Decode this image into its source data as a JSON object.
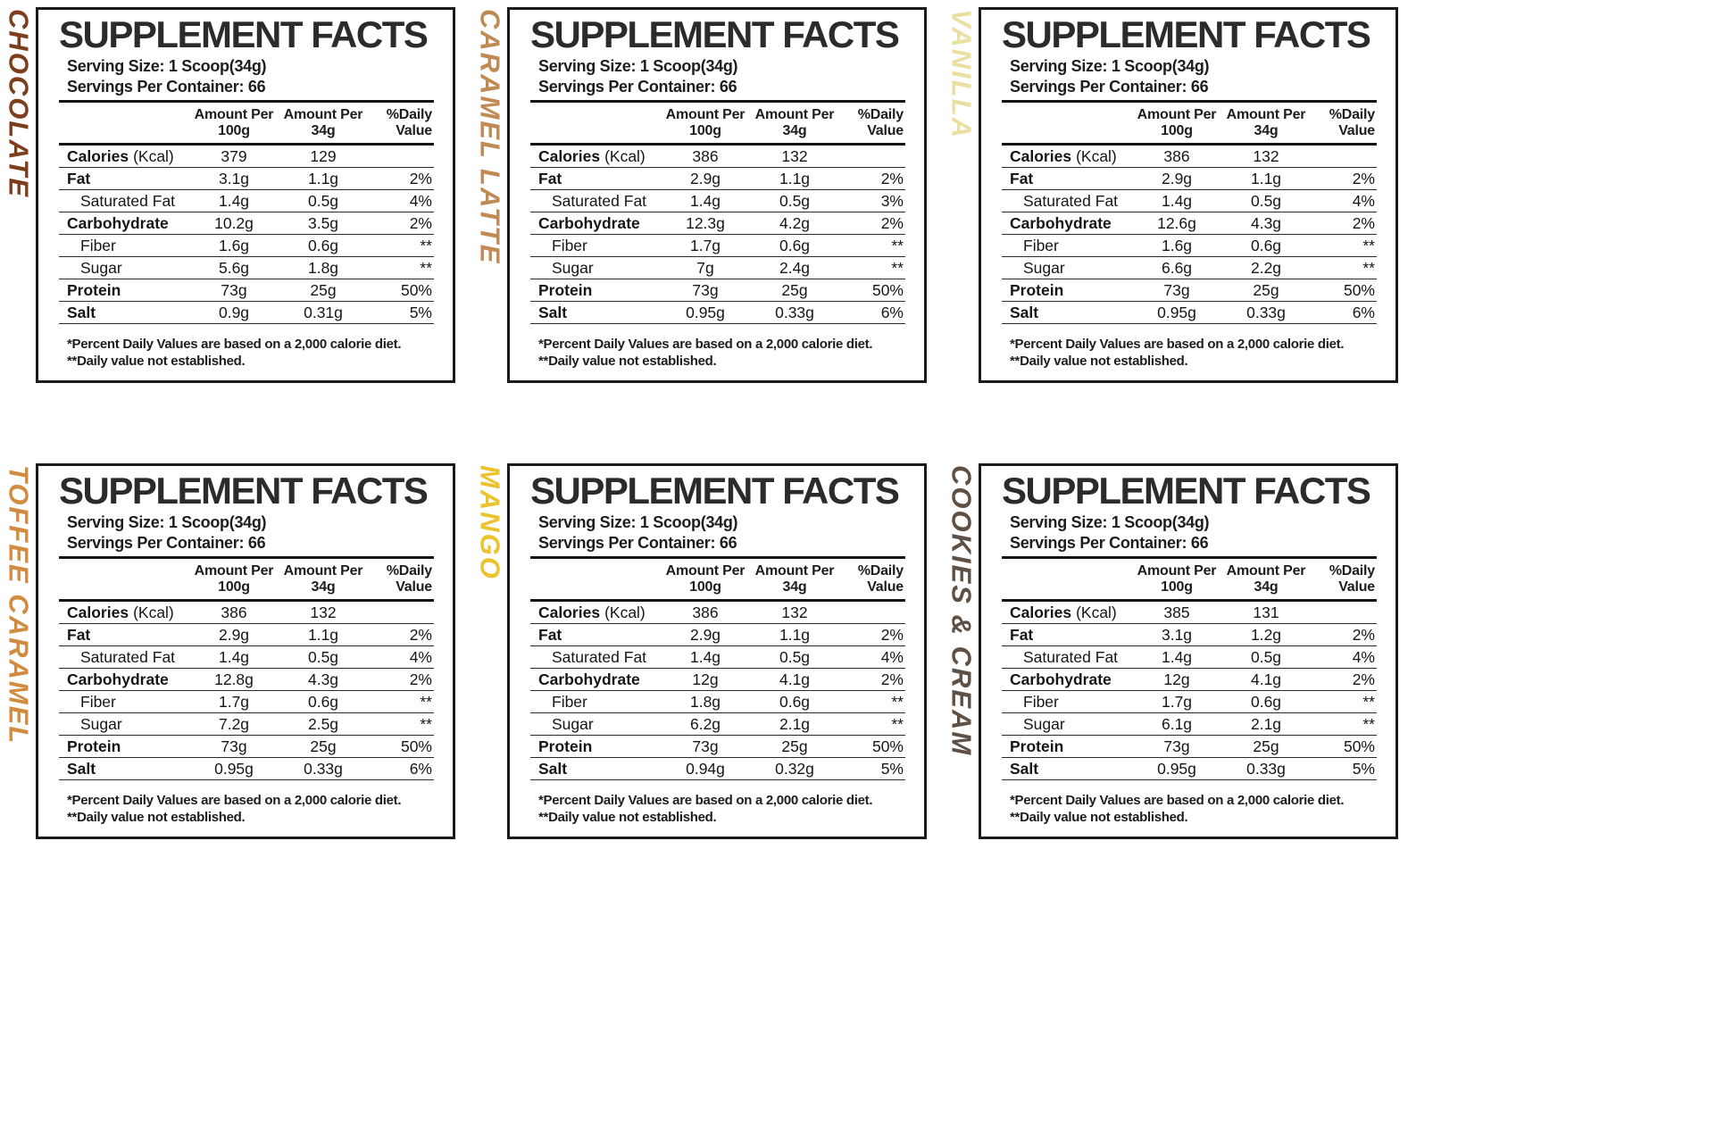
{
  "common": {
    "title": "SUPPLEMENT FACTS",
    "serving_size": "Serving Size: 1 Scoop(34g)",
    "servings_per_container": "Servings Per Container: 66",
    "columns": {
      "amount_100_line1": "Amount Per",
      "amount_100_line2": "100g",
      "amount_34_line1": "Amount Per",
      "amount_34_line2": "34g",
      "daily_value_line1": "%Daily",
      "daily_value_line2": "Value"
    },
    "rows": [
      {
        "label": "Calories",
        "suffix": "(Kcal)",
        "style": "bold"
      },
      {
        "label": "Fat",
        "style": "bold"
      },
      {
        "label": "Saturated Fat",
        "style": "indent"
      },
      {
        "label": "Carbohydrate",
        "style": "bold"
      },
      {
        "label": "Fiber",
        "style": "indent"
      },
      {
        "label": "Sugar",
        "style": "indent"
      },
      {
        "label": "Protein",
        "style": "bold"
      },
      {
        "label": "Salt",
        "style": "bold"
      }
    ],
    "footnotes": [
      "*Percent Daily Values are based on a 2,000 calorie diet.",
      "**Daily value not established."
    ]
  },
  "panels": [
    {
      "flavor": "CHOCOLATE",
      "color": "#7d3e1d",
      "values": [
        [
          "379",
          "129",
          ""
        ],
        [
          "3.1g",
          "1.1g",
          "2%"
        ],
        [
          "1.4g",
          "0.5g",
          "4%"
        ],
        [
          "10.2g",
          "3.5g",
          "2%"
        ],
        [
          "1.6g",
          "0.6g",
          "**"
        ],
        [
          "5.6g",
          "1.8g",
          "**"
        ],
        [
          "73g",
          "25g",
          "50%"
        ],
        [
          "0.9g",
          "0.31g",
          "5%"
        ]
      ]
    },
    {
      "flavor": "CARAMEL LATTE",
      "color": "#c08a55",
      "values": [
        [
          "386",
          "132",
          ""
        ],
        [
          "2.9g",
          "1.1g",
          "2%"
        ],
        [
          "1.4g",
          "0.5g",
          "3%"
        ],
        [
          "12.3g",
          "4.2g",
          "2%"
        ],
        [
          "1.7g",
          "0.6g",
          "**"
        ],
        [
          "7g",
          "2.4g",
          "**"
        ],
        [
          "73g",
          "25g",
          "50%"
        ],
        [
          "0.95g",
          "0.33g",
          "6%"
        ]
      ]
    },
    {
      "flavor": "VANILLA",
      "color": "#e9dfa0",
      "values": [
        [
          "386",
          "132",
          ""
        ],
        [
          "2.9g",
          "1.1g",
          "2%"
        ],
        [
          "1.4g",
          "0.5g",
          "4%"
        ],
        [
          "12.6g",
          "4.3g",
          "2%"
        ],
        [
          "1.6g",
          "0.6g",
          "**"
        ],
        [
          "6.6g",
          "2.2g",
          "**"
        ],
        [
          "73g",
          "25g",
          "50%"
        ],
        [
          "0.95g",
          "0.33g",
          "6%"
        ]
      ]
    },
    {
      "flavor": "TOFFEE CARAMEL",
      "color": "#d18c42",
      "values": [
        [
          "386",
          "132",
          ""
        ],
        [
          "2.9g",
          "1.1g",
          "2%"
        ],
        [
          "1.4g",
          "0.5g",
          "4%"
        ],
        [
          "12.8g",
          "4.3g",
          "2%"
        ],
        [
          "1.7g",
          "0.6g",
          "**"
        ],
        [
          "7.2g",
          "2.5g",
          "**"
        ],
        [
          "73g",
          "25g",
          "50%"
        ],
        [
          "0.95g",
          "0.33g",
          "6%"
        ]
      ]
    },
    {
      "flavor": "MANGO",
      "color": "#eac32d",
      "values": [
        [
          "386",
          "132",
          ""
        ],
        [
          "2.9g",
          "1.1g",
          "2%"
        ],
        [
          "1.4g",
          "0.5g",
          "4%"
        ],
        [
          "12g",
          "4.1g",
          "2%"
        ],
        [
          "1.8g",
          "0.6g",
          "**"
        ],
        [
          "6.2g",
          "2.1g",
          "**"
        ],
        [
          "73g",
          "25g",
          "50%"
        ],
        [
          "0.94g",
          "0.32g",
          "5%"
        ]
      ]
    },
    {
      "flavor": "COOKIES & CREAM",
      "color": "#5e5044",
      "values": [
        [
          "385",
          "131",
          ""
        ],
        [
          "3.1g",
          "1.2g",
          "2%"
        ],
        [
          "1.4g",
          "0.5g",
          "4%"
        ],
        [
          "12g",
          "4.1g",
          "2%"
        ],
        [
          "1.7g",
          "0.6g",
          "**"
        ],
        [
          "6.1g",
          "2.1g",
          "**"
        ],
        [
          "73g",
          "25g",
          "50%"
        ],
        [
          "0.95g",
          "0.33g",
          "5%"
        ]
      ]
    }
  ]
}
